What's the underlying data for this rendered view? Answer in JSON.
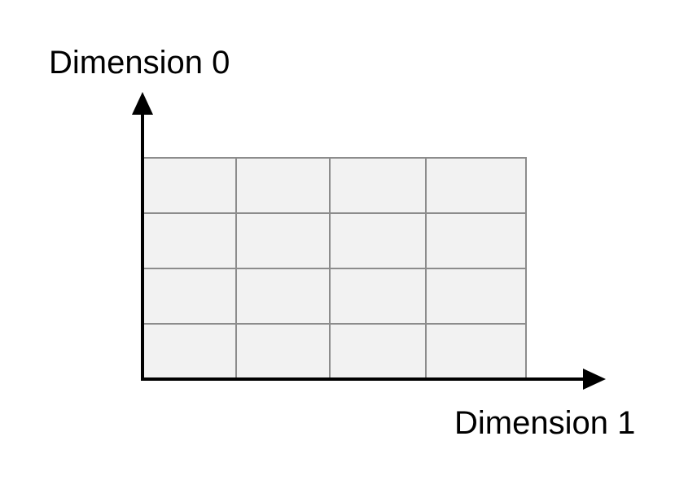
{
  "diagram": {
    "axis_labels": {
      "dimension_0": "Dimension 0",
      "dimension_1": "Dimension 1"
    },
    "grid": {
      "rows": 4,
      "columns": 4
    },
    "colors": {
      "cell_fill": "#f2f2f2",
      "cell_stroke": "#8c8c8c",
      "axis": "#000000"
    }
  }
}
